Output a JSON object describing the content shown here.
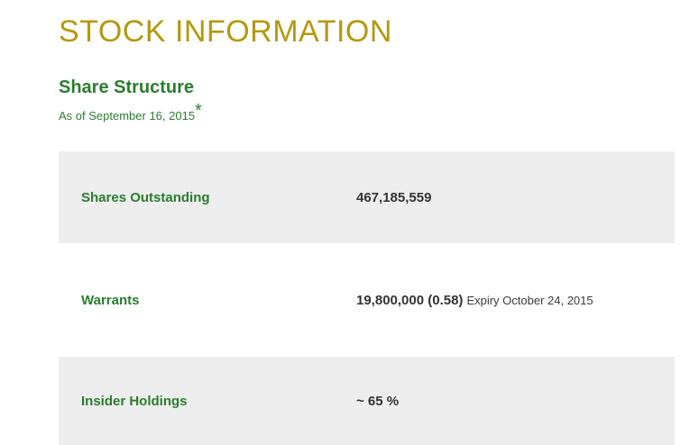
{
  "page": {
    "title": "STOCK INFORMATION",
    "section_heading": "Share Structure",
    "as_of_text": "As of September 16, 2015",
    "as_of_asterisk": "*"
  },
  "table": {
    "rows": [
      {
        "label": "Shares Outstanding",
        "value": "467,185,559",
        "note": ""
      },
      {
        "label": "Warrants",
        "value": "19,800,000 (0.58)",
        "note": "Expiry October 24, 2015"
      },
      {
        "label": "Insider Holdings",
        "value": "~ 65 %",
        "note": ""
      }
    ]
  },
  "colors": {
    "title_gold": "#B5980E",
    "heading_green": "#2A7D2E",
    "row_gray": "#EDEDED",
    "value_dark": "#333333"
  }
}
